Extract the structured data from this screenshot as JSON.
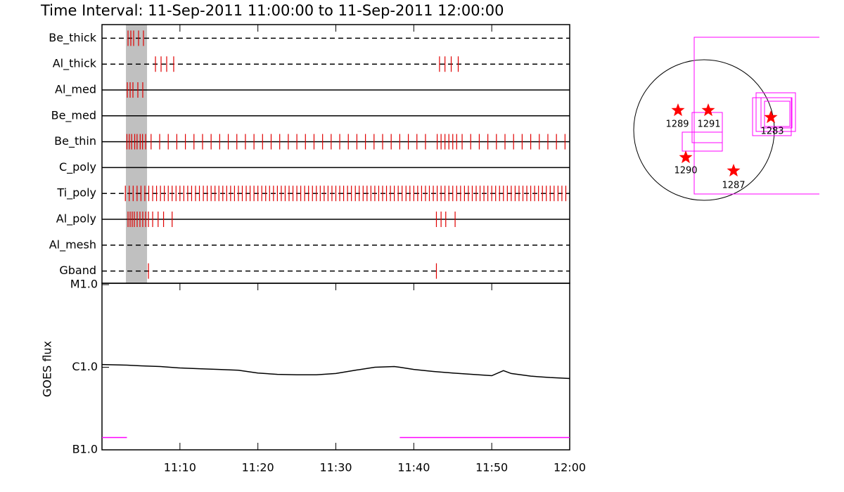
{
  "title": "Time Interval: 11-Sep-2011 11:00:00 to 11-Sep-2011 12:00:00",
  "chart_data": [
    {
      "type": "timeline",
      "categories": [
        "Be_thick",
        "Al_thick",
        "Al_med",
        "Be_med",
        "Be_thin",
        "C_poly",
        "Ti_poly",
        "Al_poly",
        "Al_mesh",
        "Gband"
      ],
      "line_styles": [
        "dashed",
        "dashed",
        "solid",
        "solid",
        "solid",
        "solid",
        "dashed",
        "solid",
        "dashed",
        "dashed"
      ],
      "xlim": [
        0,
        60
      ],
      "color": "#e00000",
      "highlight": [
        3.07,
        5.78
      ],
      "highlight_color": "#c0c0c0",
      "events": [
        [
          3.34,
          3.7,
          4.06,
          4.69,
          5.32
        ],
        [
          6.86,
          7.58,
          8.3,
          9.2,
          43.3,
          44.0,
          44.8,
          45.7
        ],
        [
          3.25,
          3.61,
          3.97,
          4.6,
          5.23
        ],
        [],
        [
          3.2,
          3.5,
          3.8,
          4.2,
          4.5,
          4.9,
          5.2,
          5.6,
          6.3,
          7.4,
          8.5,
          9.6,
          10.7,
          11.8,
          12.9,
          14.0,
          15.1,
          16.2,
          17.3,
          18.4,
          19.5,
          20.6,
          21.7,
          22.8,
          23.9,
          25.0,
          26.1,
          27.2,
          28.3,
          29.4,
          30.5,
          31.6,
          32.7,
          33.8,
          34.9,
          36.0,
          37.1,
          38.2,
          39.3,
          40.4,
          41.5,
          43.0,
          43.5,
          44.0,
          44.5,
          45.0,
          45.5,
          46.2,
          47.3,
          48.4,
          49.5,
          50.6,
          51.7,
          52.8,
          53.9,
          55.0,
          56.1,
          57.2,
          58.3,
          59.4
        ],
        [],
        [
          3.0,
          3.5,
          4.0,
          4.5,
          5.0,
          5.5,
          6.0,
          6.5,
          7.0,
          7.5,
          8.0,
          8.5,
          9.0,
          9.5,
          10.0,
          10.5,
          11.0,
          11.5,
          12.0,
          12.5,
          13.0,
          13.5,
          14.0,
          14.5,
          15.0,
          15.5,
          16.0,
          16.5,
          17.0,
          17.5,
          18.0,
          18.5,
          19.0,
          19.5,
          20.0,
          20.5,
          21.0,
          21.5,
          22.0,
          22.5,
          23.0,
          23.5,
          24.0,
          24.5,
          25.0,
          25.5,
          26.0,
          26.5,
          27.0,
          27.5,
          28.0,
          28.5,
          29.0,
          29.5,
          30.0,
          30.5,
          31.0,
          31.5,
          32.0,
          32.5,
          33.0,
          33.5,
          34.0,
          34.5,
          35.0,
          35.5,
          36.0,
          36.5,
          37.0,
          37.5,
          38.0,
          38.5,
          39.0,
          39.5,
          40.0,
          40.5,
          41.0,
          41.5,
          42.0,
          42.5,
          43.0,
          43.5,
          44.0,
          44.5,
          45.0,
          45.5,
          46.0,
          46.5,
          47.0,
          47.5,
          48.0,
          48.5,
          49.0,
          49.5,
          50.0,
          50.5,
          51.0,
          51.5,
          52.0,
          52.5,
          53.0,
          53.5,
          54.0,
          54.5,
          55.0,
          55.5,
          56.0,
          56.5,
          57.0,
          57.5,
          58.0,
          58.5,
          59.0,
          59.5
        ],
        [
          3.34,
          3.61,
          3.88,
          4.15,
          4.51,
          4.87,
          5.23,
          5.6,
          5.96,
          6.5,
          7.2,
          7.9,
          9.0,
          42.9,
          43.5,
          44.1,
          45.3
        ],
        [],
        [
          5.96,
          42.9
        ]
      ]
    },
    {
      "type": "line",
      "ylabel": "GOES flux",
      "log_scale": true,
      "xlim": [
        0,
        60
      ],
      "xticks": [
        {
          "value": 10,
          "label": "11:10"
        },
        {
          "value": 20,
          "label": "11:20"
        },
        {
          "value": 30,
          "label": "11:30"
        },
        {
          "value": 40,
          "label": "11:40"
        },
        {
          "value": 50,
          "label": "11:50"
        },
        {
          "value": 60,
          "label": "12:00"
        }
      ],
      "ylim": [
        1e-07,
        1e-05
      ],
      "yticks": [
        {
          "value": 1e-07,
          "label": "B1.0"
        },
        {
          "value": 1e-06,
          "label": "C1.0"
        },
        {
          "value": 1e-05,
          "label": "M1.0"
        }
      ],
      "x": [
        0,
        3.2,
        5,
        7.5,
        10,
        12.5,
        15,
        17.5,
        20,
        22.5,
        25,
        27.5,
        30,
        32.5,
        35,
        37.5,
        38.2,
        40,
        42.5,
        45,
        47.5,
        50,
        51.5,
        52.5,
        55,
        57.5,
        60
      ],
      "series": [
        {
          "color": "#000000",
          "values": [
            1.08e-06,
            1.06e-06,
            1.04e-06,
            1.02e-06,
            9.8e-07,
            9.6e-07,
            9.4e-07,
            9.2e-07,
            8.5e-07,
            8.2e-07,
            8.1e-07,
            8.1e-07,
            8.4e-07,
            9.2e-07,
            1e-06,
            1.02e-06,
            1e-06,
            9.4e-07,
            8.9e-07,
            8.5e-07,
            8.2e-07,
            7.9e-07,
            9.1e-07,
            8.4e-07,
            7.8e-07,
            7.5e-07,
            7.3e-07
          ]
        },
        {
          "color": "#ff00ff",
          "values": [
            1.41e-07,
            1.41e-07,
            null,
            null,
            null,
            null,
            null,
            null,
            null,
            null,
            null,
            null,
            null,
            null,
            null,
            null,
            1.41e-07,
            1.41e-07,
            1.41e-07,
            1.41e-07,
            1.41e-07,
            1.41e-07,
            1.41e-07,
            1.41e-07,
            1.41e-07,
            1.41e-07,
            1.41e-07
          ]
        }
      ]
    }
  ],
  "map": {
    "regions": [
      "1289",
      "1291",
      "1283",
      "1290",
      "1287"
    ]
  }
}
